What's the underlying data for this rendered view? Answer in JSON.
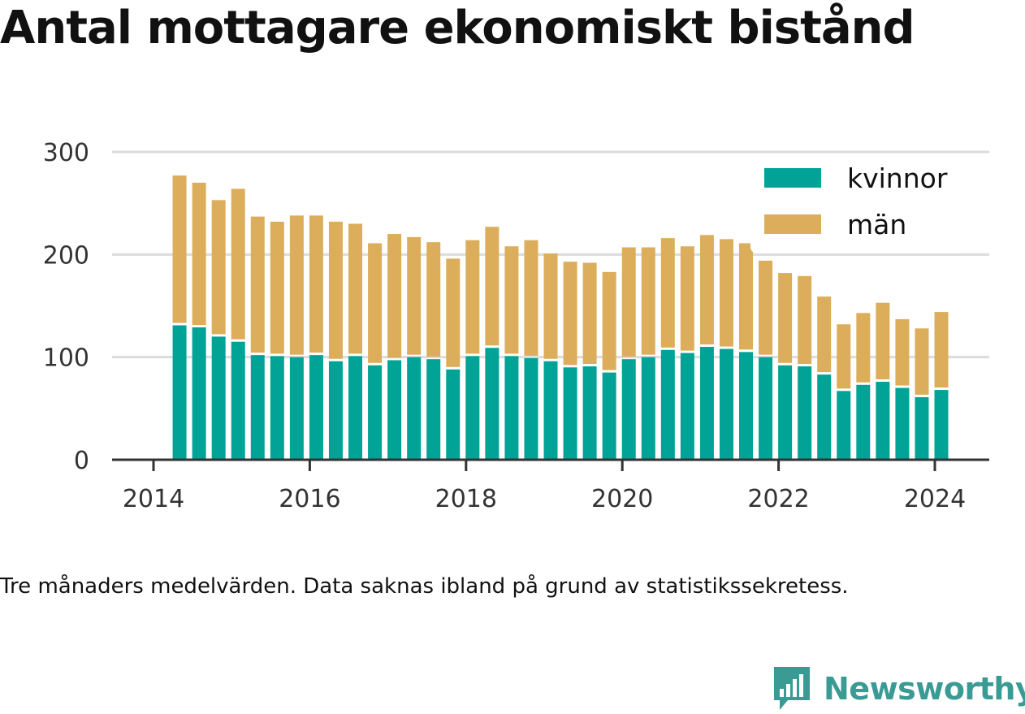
{
  "title": "Antal mottagare ekonomiskt bistånd",
  "caption": "Tre månaders medelvärden. Data saknas ibland på grund av statistikssekretess.",
  "brand": "Newsworthy",
  "colors": {
    "kvinnor": "#00a396",
    "man": "#dcae5b",
    "grid": "#dcdcdc",
    "axis": "#333333",
    "brand": "#3a9a94"
  },
  "chart_data": {
    "type": "bar",
    "stacked": true,
    "x_ticks": [
      "2014",
      "2016",
      "2018",
      "2020",
      "2022",
      "2024"
    ],
    "y_ticks": [
      "0",
      "100",
      "200",
      "300"
    ],
    "ylim": [
      0,
      300
    ],
    "xlim": [
      "2014-01",
      "2024-06"
    ],
    "grid": true,
    "legend_position": "top-right",
    "x": [
      "2014-05",
      "2014-08",
      "2014-11",
      "2015-02",
      "2015-05",
      "2015-08",
      "2015-11",
      "2016-02",
      "2016-05",
      "2016-08",
      "2016-11",
      "2017-02",
      "2017-05",
      "2017-08",
      "2017-11",
      "2018-02",
      "2018-05",
      "2018-08",
      "2018-11",
      "2019-02",
      "2019-05",
      "2019-08",
      "2019-11",
      "2020-02",
      "2020-05",
      "2020-08",
      "2020-11",
      "2021-02",
      "2021-05",
      "2021-08",
      "2021-11",
      "2022-02",
      "2022-05",
      "2022-08",
      "2022-11",
      "2023-02",
      "2023-05",
      "2023-08",
      "2023-11",
      "2024-02"
    ],
    "series": [
      {
        "name": "kvinnor",
        "values": [
          131,
          129,
          120,
          115,
          102,
          101,
          100,
          102,
          96,
          101,
          92,
          97,
          100,
          98,
          88,
          101,
          109,
          101,
          99,
          96,
          90,
          91,
          85,
          98,
          100,
          107,
          104,
          110,
          108,
          105,
          100,
          92,
          91,
          83,
          67,
          73,
          76,
          70,
          61,
          68
        ]
      },
      {
        "name": "män",
        "values": [
          146,
          141,
          133,
          149,
          135,
          131,
          138,
          136,
          136,
          129,
          119,
          123,
          117,
          114,
          108,
          113,
          118,
          107,
          115,
          105,
          103,
          101,
          98,
          109,
          107,
          109,
          104,
          109,
          107,
          106,
          94,
          90,
          88,
          76,
          65,
          70,
          77,
          67,
          67,
          76
        ]
      }
    ]
  }
}
